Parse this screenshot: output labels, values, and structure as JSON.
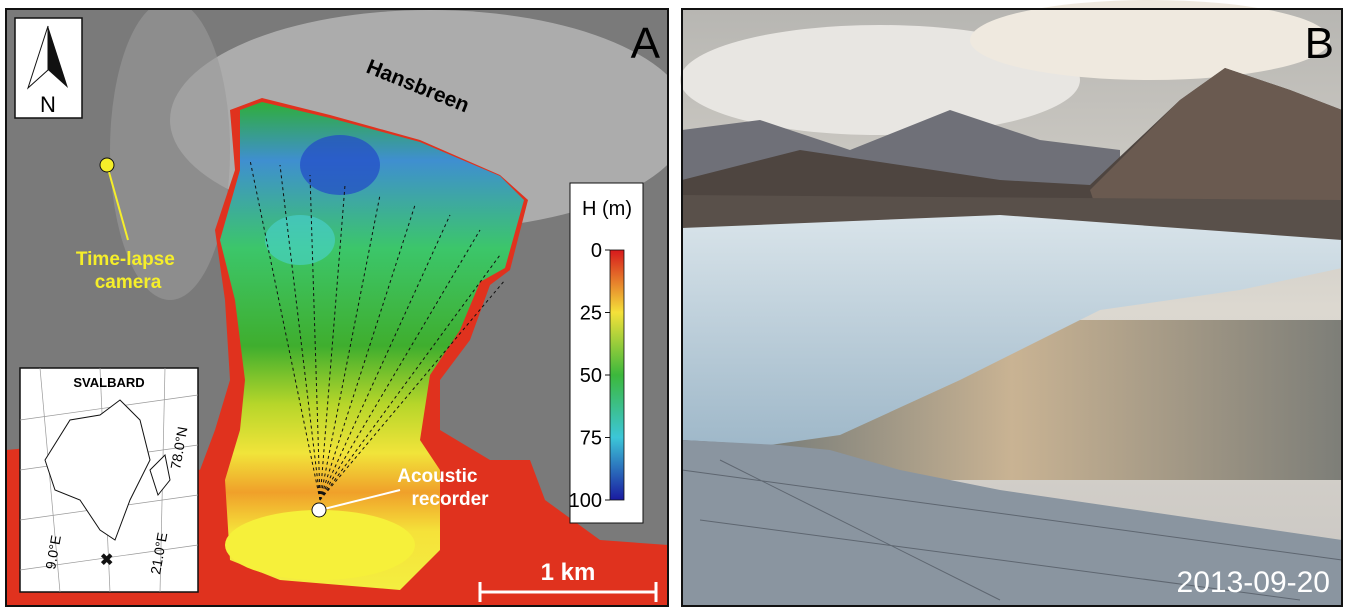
{
  "panel_a": {
    "label": "A",
    "glacier_name": "Hansbreen",
    "camera_label": [
      "Time-lapse",
      "camera"
    ],
    "recorder_label": [
      "Acoustic",
      "recorder"
    ],
    "north": "N",
    "scale_bar": "1 km",
    "colorbar": {
      "title": "H (m)",
      "lim": [
        0,
        100
      ],
      "ticks": [
        0,
        25,
        50,
        75,
        100
      ]
    },
    "inset": {
      "title": "SVALBARD",
      "lat_label": "78.0°N",
      "lon_labels": [
        "9.0°E",
        "21.0°E"
      ]
    }
  },
  "panel_b": {
    "label": "B",
    "date": "2013-09-20"
  }
}
